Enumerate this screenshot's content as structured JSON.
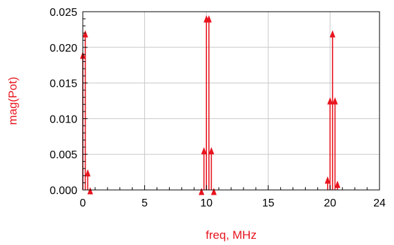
{
  "chart_data": {
    "type": "stem",
    "xlabel": "freq, MHz",
    "ylabel": "mag(Pot)",
    "xlim": [
      0,
      24
    ],
    "ylim": [
      0.0,
      0.025
    ],
    "xticks": [
      0,
      5,
      10,
      15,
      20,
      24
    ],
    "xtick_labels": [
      "0",
      "5",
      "10",
      "15",
      "20",
      "24"
    ],
    "yticks": [
      0.0,
      0.005,
      0.01,
      0.015,
      0.02,
      0.025
    ],
    "ytick_labels": [
      "0.000",
      "0.005",
      "0.010",
      "0.015",
      "0.020",
      "0.025"
    ],
    "grid": true,
    "series": [
      {
        "x": [
          0.0,
          0.2,
          0.4,
          0.6,
          9.6,
          9.8,
          10.0,
          10.2,
          10.4,
          10.6,
          19.8,
          20.0,
          20.2,
          20.4,
          20.6
        ],
        "y": [
          0.0192,
          0.0222,
          0.0027,
          0.0002,
          0.0001,
          0.0058,
          0.0243,
          0.0243,
          0.0058,
          0.0001,
          0.0017,
          0.0128,
          0.0222,
          0.0128,
          0.0011
        ]
      }
    ]
  },
  "colors": {
    "series": "#e8141e",
    "axis_label": "#e8141e",
    "grid": "#c8c8c8",
    "axis": "#000000"
  }
}
